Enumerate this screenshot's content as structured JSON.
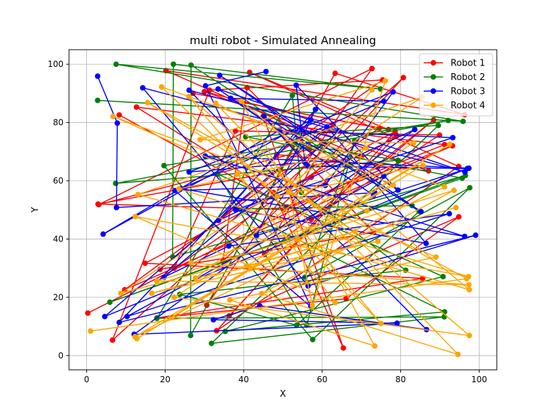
{
  "chart_data": {
    "type": "line",
    "title": "multi robot - Simulated Annealing",
    "xlabel": "X",
    "ylabel": "Y",
    "xlim": [
      -4.5,
      104.5
    ],
    "ylim": [
      -4.9,
      105
    ],
    "xticks": [
      0,
      20,
      40,
      60,
      80,
      100
    ],
    "yticks": [
      0,
      20,
      40,
      60,
      80,
      100
    ],
    "grid": true,
    "legend_position": "top-right",
    "series": [
      {
        "name": "Robot 1",
        "color": "#ff0000",
        "points": [
          [
            0.3,
            14.6
          ],
          [
            74.1,
            64.6
          ],
          [
            88.4,
            80.9
          ],
          [
            45.3,
            34.7
          ],
          [
            60.5,
            72.9
          ],
          [
            9.7,
            22.6
          ],
          [
            93.2,
            72.0
          ],
          [
            50.2,
            50.1
          ],
          [
            2.9,
            52.0
          ],
          [
            69.9,
            68.3
          ],
          [
            20.2,
            97.8
          ],
          [
            96.3,
            82.7
          ],
          [
            63.3,
            96.9
          ],
          [
            30.6,
            17.3
          ],
          [
            72.7,
            98.5
          ],
          [
            3.1,
            51.8
          ],
          [
            56.8,
            70.8
          ],
          [
            40.9,
            92.0
          ],
          [
            34.7,
            32.4
          ],
          [
            57.2,
            61.2
          ],
          [
            80.7,
            95.4
          ],
          [
            6.6,
            5.3
          ],
          [
            31.3,
            91.1
          ],
          [
            75.4,
            94.6
          ],
          [
            48.4,
            69.0
          ],
          [
            87.1,
            63.4
          ],
          [
            30.0,
            90.6
          ],
          [
            62.8,
            79.4
          ],
          [
            18.7,
            29.6
          ],
          [
            73.1,
            42.3
          ],
          [
            45.0,
            82.2
          ],
          [
            65.4,
            2.6
          ],
          [
            47.6,
            56.0
          ],
          [
            12.7,
            85.3
          ],
          [
            91.2,
            72.4
          ],
          [
            51.1,
            51.0
          ],
          [
            78.9,
            75.6
          ],
          [
            36.3,
            13.6
          ],
          [
            94.8,
            47.6
          ],
          [
            66.1,
            19.5
          ],
          [
            17.9,
            12.9
          ],
          [
            85.6,
            26.5
          ],
          [
            14.9,
            31.7
          ],
          [
            78.6,
            76.9
          ],
          [
            33.1,
            8.5
          ],
          [
            94.8,
            64.9
          ],
          [
            41.5,
            97.2
          ],
          [
            76.9,
            77.6
          ],
          [
            27.1,
            90.0
          ],
          [
            74.6,
            78.1
          ],
          [
            22.3,
            30.0
          ],
          [
            37.9,
            77.1
          ],
          [
            89.9,
            75.7
          ],
          [
            57.2,
            46.7
          ],
          [
            8.3,
            82.6
          ]
        ]
      },
      {
        "name": "Robot 2",
        "color": "#008000",
        "points": [
          [
            2.8,
            87.6
          ],
          [
            95.9,
            80.4
          ],
          [
            7.5,
            100.0
          ],
          [
            74.9,
            91.5
          ],
          [
            22.1,
            100.0
          ],
          [
            21.9,
            33.9
          ],
          [
            96.5,
            61.8
          ],
          [
            5.9,
            18.3
          ],
          [
            95.7,
            60.9
          ],
          [
            40.5,
            75.1
          ],
          [
            89.6,
            79.0
          ],
          [
            31.8,
            4.2
          ],
          [
            91.1,
            13.3
          ],
          [
            17.9,
            12.8
          ],
          [
            52.4,
            89.3
          ],
          [
            54.7,
            56.0
          ],
          [
            81.3,
            29.3
          ],
          [
            23.7,
            21.0
          ],
          [
            53.5,
            10.4
          ],
          [
            84.7,
            49.5
          ],
          [
            26.6,
            99.7
          ],
          [
            26.5,
            6.9
          ],
          [
            53.1,
            72.8
          ],
          [
            79.3,
            67.0
          ],
          [
            7.4,
            59.1
          ],
          [
            92.1,
            80.7
          ],
          [
            19.7,
            65.2
          ],
          [
            57.6,
            5.5
          ],
          [
            97.6,
            57.6
          ],
          [
            55.6,
            26.9
          ],
          [
            68.3,
            73.7
          ],
          [
            56.1,
            10.5
          ],
          [
            33.4,
            62.3
          ],
          [
            90.8,
            27.1
          ],
          [
            35.3,
            8.3
          ],
          [
            91.2,
            15.0
          ],
          [
            38.0,
            50.3
          ],
          [
            82.9,
            51.5
          ]
        ]
      },
      {
        "name": "Robot 3",
        "color": "#0000ff",
        "points": [
          [
            2.8,
            95.9
          ],
          [
            7.8,
            79.8
          ],
          [
            7.6,
            50.8
          ],
          [
            73.4,
            55.9
          ],
          [
            75.7,
            61.6
          ],
          [
            10.3,
            13.4
          ],
          [
            92.4,
            48.7
          ],
          [
            36.2,
            37.6
          ],
          [
            19.7,
            26.9
          ],
          [
            64.3,
            77.1
          ],
          [
            26.1,
            91.1
          ],
          [
            86.6,
            8.9
          ],
          [
            44.1,
            17.1
          ],
          [
            32.3,
            12.3
          ],
          [
            79.1,
            11.1
          ],
          [
            12.1,
            7.3
          ],
          [
            83.6,
            77.6
          ],
          [
            33.6,
            46.4
          ],
          [
            58.3,
            84.5
          ],
          [
            43.3,
            41.2
          ],
          [
            97.4,
            64.3
          ],
          [
            30.2,
            68.5
          ],
          [
            96.3,
            40.9
          ],
          [
            24.0,
            57.3
          ],
          [
            75.7,
            87.3
          ],
          [
            36.7,
            88.3
          ],
          [
            73.1,
            55.0
          ],
          [
            33.5,
            91.5
          ],
          [
            96.4,
            63.0
          ],
          [
            14.3,
            91.9
          ],
          [
            56.4,
            23.9
          ],
          [
            99.1,
            41.3
          ],
          [
            8.3,
            11.4
          ],
          [
            57.1,
            80.9
          ],
          [
            4.2,
            41.7
          ],
          [
            49.2,
            77.4
          ],
          [
            93.3,
            74.8
          ],
          [
            37.9,
            50.1
          ],
          [
            86.5,
            38.5
          ],
          [
            61.2,
            78.5
          ],
          [
            4.6,
            13.4
          ],
          [
            97.0,
            64.2
          ],
          [
            56.4,
            65.0
          ],
          [
            45.2,
            82.1
          ],
          [
            85.2,
            49.4
          ],
          [
            33.9,
            96.2
          ],
          [
            79.3,
            56.8
          ],
          [
            53.4,
            92.8
          ],
          [
            55.6,
            66.3
          ],
          [
            26.1,
            63.0
          ],
          [
            78.1,
            90.5
          ],
          [
            60.8,
            58.4
          ],
          [
            22.5,
            56.6
          ],
          [
            57.1,
            16.8
          ],
          [
            30.3,
            92.6
          ],
          [
            45.7,
            97.5
          ]
        ]
      },
      {
        "name": "Robot 4",
        "color": "#ffa500",
        "points": [
          [
            1.0,
            8.4
          ],
          [
            96.8,
            26.4
          ],
          [
            15.5,
            86.8
          ],
          [
            68.4,
            42.6
          ],
          [
            8.7,
            21.4
          ],
          [
            85.5,
            88.7
          ],
          [
            13.1,
            55.3
          ],
          [
            97.5,
            22.6
          ],
          [
            39.4,
            87.3
          ],
          [
            73.4,
            3.3
          ],
          [
            36.5,
            19.1
          ],
          [
            89.0,
            33.8
          ],
          [
            6.7,
            82.1
          ],
          [
            71.4,
            49.7
          ],
          [
            26.6,
            31.8
          ],
          [
            97.4,
            24.3
          ],
          [
            17.9,
            25.6
          ],
          [
            93.6,
            56.7
          ],
          [
            44.6,
            21.3
          ],
          [
            94.6,
            0.4
          ],
          [
            32.9,
            86.6
          ],
          [
            78.1,
            58.5
          ],
          [
            12.3,
            6.5
          ],
          [
            91.2,
            57.9
          ],
          [
            19.1,
            92.2
          ],
          [
            48.6,
            54.7
          ],
          [
            85.7,
            65.3
          ],
          [
            12.8,
            5.8
          ],
          [
            92.5,
            72.5
          ],
          [
            40.8,
            30.8
          ],
          [
            94.1,
            50.8
          ],
          [
            16.6,
            21.4
          ],
          [
            74.2,
            39.2
          ],
          [
            27.7,
            26.6
          ],
          [
            71.2,
            71.2
          ],
          [
            23.5,
            57.2
          ],
          [
            97.3,
            27.1
          ],
          [
            12.4,
            47.7
          ],
          [
            63.3,
            18.2
          ],
          [
            38.4,
            62.3
          ],
          [
            75.0,
            11.0
          ],
          [
            26.0,
            88.9
          ],
          [
            97.5,
            6.9
          ],
          [
            22.3,
            20.0
          ],
          [
            83.3,
            73.0
          ],
          [
            28.9,
            74.1
          ],
          [
            76.1,
            94.3
          ],
          [
            57.5,
            17.1
          ],
          [
            51.6,
            56.1
          ],
          [
            72.7,
            91.2
          ]
        ]
      }
    ]
  }
}
